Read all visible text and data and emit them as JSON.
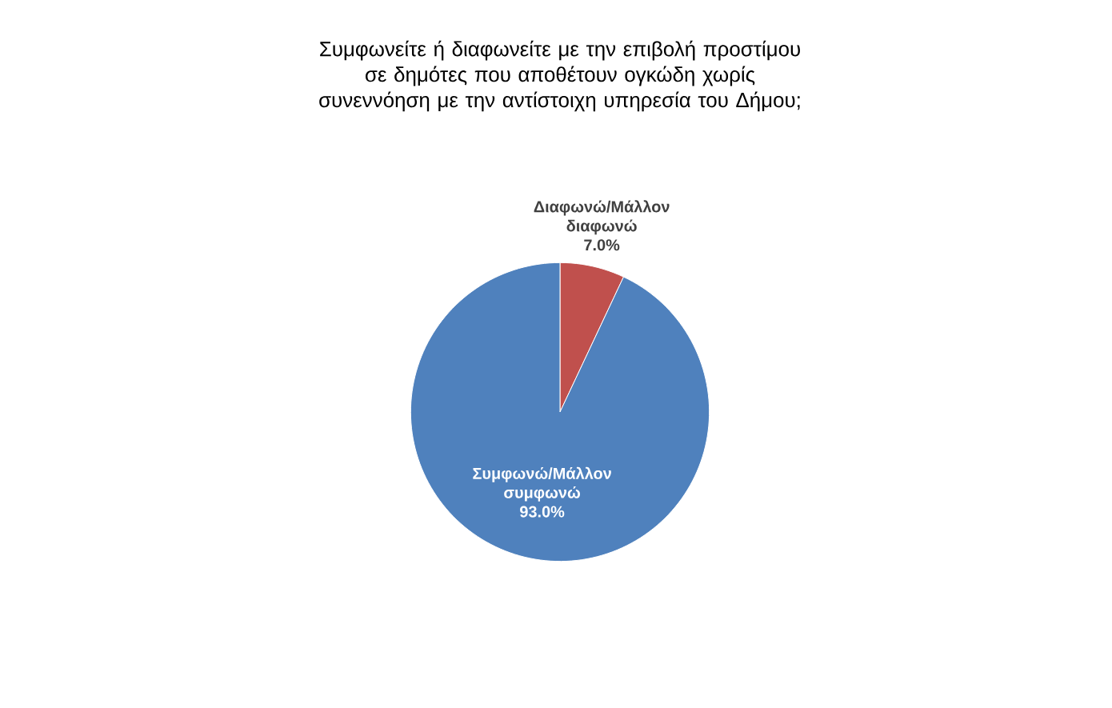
{
  "chart_data": {
    "type": "pie",
    "title": "Συμφωνείτε ή διαφωνείτε με την επιβολή προστίμου σε δημότες που αποθέτουν ογκώδη χωρίς συνεννόηση με την αντίστοιχη υπηρεσία του Δήμου;",
    "categories": [
      "Διαφωνώ/Μάλλον διαφωνώ",
      "Συμφωνώ/Μάλλον συμφωνώ"
    ],
    "values": [
      7.0,
      93.0
    ],
    "value_labels": [
      "7.0%",
      "93.0%"
    ],
    "colors": [
      "#c0504d",
      "#4f81bd"
    ]
  }
}
